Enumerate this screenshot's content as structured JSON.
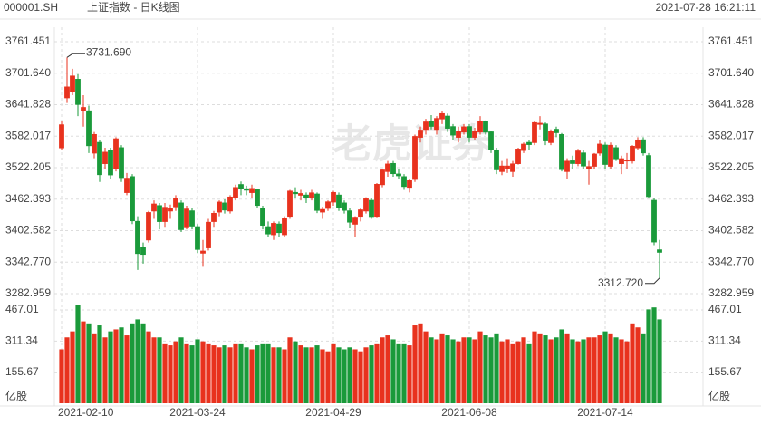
{
  "chart_data": {
    "type": "candlestick",
    "symbol": "000001.SH",
    "title": "上证指数 - 日K线图",
    "timestamp": "2021-07-28 16:21:11",
    "watermark": "老虎证券",
    "up_color": "#e8321e",
    "down_color": "#1a9a3a",
    "categories": [
      "2021-02-10",
      null,
      null,
      null,
      null,
      null,
      null,
      null,
      null,
      null,
      null,
      null,
      null,
      null,
      null,
      null,
      null,
      null,
      null,
      null,
      null,
      null,
      null,
      null,
      null,
      "2021-03-24",
      null,
      null,
      null,
      null,
      null,
      null,
      null,
      null,
      null,
      null,
      null,
      null,
      null,
      null,
      null,
      null,
      null,
      null,
      null,
      null,
      null,
      null,
      null,
      null,
      "2021-04-29",
      null,
      null,
      null,
      null,
      null,
      null,
      null,
      null,
      null,
      null,
      null,
      null,
      null,
      null,
      null,
      null,
      null,
      null,
      null,
      null,
      null,
      null,
      null,
      null,
      "2021-06-08",
      null,
      null,
      null,
      null,
      null,
      null,
      null,
      null,
      null,
      null,
      null,
      null,
      null,
      null,
      null,
      null,
      null,
      null,
      null,
      null,
      null,
      null,
      null,
      null,
      "2021-07-14",
      null,
      null,
      null,
      null,
      null,
      null,
      null,
      null,
      null,
      null
    ],
    "open": [
      3560,
      3655,
      3666,
      3690,
      3630,
      3630,
      3550,
      3570,
      3530,
      3555,
      3520,
      3560,
      3475,
      3505,
      3420,
      3370,
      3385,
      3440,
      3450,
      3420,
      3440,
      3448,
      3455,
      3410,
      3440,
      3410,
      3360,
      3370,
      3420,
      3438,
      3455,
      3440,
      3466,
      3490,
      3482,
      3475,
      3480,
      3445,
      3410,
      3395,
      3415,
      3395,
      3430,
      3475,
      3470,
      3470,
      3465,
      3472,
      3438,
      3445,
      3457,
      3470,
      3455,
      3440,
      3415,
      3430,
      3440,
      3460,
      3430,
      3490,
      3515,
      3530,
      3510,
      3505,
      3485,
      3500,
      3580,
      3595,
      3610,
      3595,
      3615,
      3620,
      3600,
      3580,
      3590,
      3600,
      3580,
      3590,
      3610,
      3590,
      3555,
      3515,
      3520,
      3515,
      3530,
      3555,
      3570,
      3570,
      3605,
      3605,
      3570,
      3595,
      3585,
      3515,
      3535,
      3530,
      3550,
      3520,
      3525,
      3550,
      3565,
      3525,
      3560,
      3530,
      3535,
      3535,
      3560,
      3575,
      3545,
      3460,
      3366
    ],
    "high": [
      3611,
      3731.69,
      3710,
      3700,
      3660,
      3640,
      3590,
      3575,
      3560,
      3560,
      3580,
      3565,
      3512,
      3510,
      3430,
      3380,
      3440,
      3460,
      3455,
      3455,
      3452,
      3470,
      3460,
      3450,
      3445,
      3415,
      3385,
      3425,
      3440,
      3460,
      3462,
      3470,
      3490,
      3496,
      3488,
      3490,
      3482,
      3450,
      3420,
      3420,
      3420,
      3430,
      3480,
      3485,
      3480,
      3475,
      3480,
      3475,
      3448,
      3460,
      3478,
      3475,
      3460,
      3445,
      3430,
      3445,
      3466,
      3465,
      3493,
      3520,
      3535,
      3535,
      3520,
      3510,
      3500,
      3585,
      3600,
      3615,
      3622,
      3620,
      3630,
      3625,
      3605,
      3600,
      3605,
      3605,
      3598,
      3620,
      3612,
      3592,
      3560,
      3535,
      3540,
      3535,
      3560,
      3570,
      3575,
      3610,
      3620,
      3608,
      3595,
      3600,
      3588,
      3540,
      3545,
      3558,
      3555,
      3535,
      3550,
      3575,
      3570,
      3570,
      3565,
      3545,
      3550,
      3565,
      3580,
      3580,
      3550,
      3465,
      3385
    ],
    "low": [
      3555,
      3645,
      3660,
      3620,
      3600,
      3550,
      3540,
      3495,
      3520,
      3500,
      3515,
      3495,
      3470,
      3415,
      3328,
      3340,
      3380,
      3425,
      3405,
      3410,
      3425,
      3440,
      3400,
      3405,
      3405,
      3360,
      3334,
      3365,
      3410,
      3430,
      3435,
      3435,
      3460,
      3470,
      3470,
      3465,
      3445,
      3405,
      3390,
      3385,
      3390,
      3390,
      3425,
      3465,
      3460,
      3455,
      3460,
      3436,
      3425,
      3440,
      3450,
      3440,
      3435,
      3408,
      3390,
      3420,
      3435,
      3425,
      3428,
      3485,
      3505,
      3505,
      3500,
      3480,
      3475,
      3495,
      3570,
      3585,
      3595,
      3585,
      3605,
      3590,
      3575,
      3570,
      3585,
      3570,
      3575,
      3585,
      3585,
      3550,
      3510,
      3508,
      3512,
      3505,
      3528,
      3550,
      3555,
      3565,
      3595,
      3565,
      3565,
      3580,
      3515,
      3500,
      3520,
      3525,
      3520,
      3490,
      3520,
      3545,
      3520,
      3520,
      3535,
      3510,
      3520,
      3530,
      3555,
      3545,
      3465,
      3375,
      3312.72
    ],
    "close": [
      3603.49,
      3675.36,
      3696.17,
      3642.44,
      3636.36,
      3564.08,
      3585.05,
      3509.08,
      3551.4,
      3508.59,
      3576.9,
      3503.49,
      3501.99,
      3421.41,
      3359.29,
      3357.74,
      3436.83,
      3453.08,
      3419.95,
      3446.73,
      3445.55,
      3463.07,
      3404.66,
      3443.44,
      3411.51,
      3367.06,
      3363.59,
      3418.33,
      3435.3,
      3456.68,
      3441.91,
      3466.33,
      3484.39,
      3482.48,
      3479.63,
      3482.55,
      3450.68,
      3412.95,
      3396.47,
      3416.25,
      3398.99,
      3426.62,
      3477.55,
      3472.94,
      3472.93,
      3465.11,
      3474.17,
      3441.17,
      3442.61,
      3457.07,
      3474.9,
      3446.86,
      3441.28,
      3418.87,
      3427.99,
      3441.85,
      3462.75,
      3429.54,
      3490.38,
      3517.62,
      3529.01,
      3510.96,
      3506.94,
      3486.56,
      3497.28,
      3581.34,
      3593.36,
      3608.85,
      3600.78,
      3615.48,
      3624.71,
      3597.14,
      3584.22,
      3591.84,
      3599.54,
      3580.11,
      3591.4,
      3610.86,
      3589.75,
      3556.56,
      3518.33,
      3525.1,
      3525.1,
      3529.18,
      3557.41,
      3566.65,
      3566.22,
      3607.56,
      3606.37,
      3573.18,
      3591.2,
      3588.78,
      3518.76,
      3534.32,
      3530.26,
      3553.72,
      3525.5,
      3524.09,
      3547.84,
      3566.79,
      3528.5,
      3564.59,
      3539.3,
      3539.12,
      3536.79,
      3562.7,
      3574.73,
      3550.4,
      3467.44,
      3381.18,
      3361.64
    ],
    "volume": [
      270,
      330,
      360,
      490,
      410,
      400,
      350,
      390,
      330,
      360,
      370,
      380,
      340,
      400,
      420,
      400,
      360,
      330,
      330,
      300,
      290,
      310,
      330,
      300,
      290,
      320,
      310,
      300,
      290,
      280,
      290,
      280,
      300,
      300,
      280,
      270,
      290,
      300,
      300,
      280,
      280,
      270,
      330,
      310,
      290,
      280,
      280,
      290,
      270,
      260,
      300,
      280,
      270,
      280,
      270,
      260,
      280,
      290,
      300,
      330,
      340,
      320,
      300,
      300,
      290,
      390,
      400,
      360,
      330,
      320,
      350,
      340,
      320,
      310,
      330,
      330,
      320,
      360,
      340,
      330,
      350,
      310,
      320,
      300,
      310,
      330,
      300,
      360,
      350,
      340,
      320,
      330,
      370,
      350,
      320,
      310,
      320,
      330,
      330,
      340,
      360,
      350,
      330,
      320,
      310,
      400,
      380,
      350,
      470,
      480,
      420
    ],
    "ylim": [
      3282.959,
      3761.451
    ],
    "yticks": [
      3761.451,
      {
        "value": 3701.64,
        "label": "3701.640"
      },
      3641.828,
      3582.017,
      3522.205,
      3462.393,
      3402.582,
      {
        "value": 3342.77,
        "label": "3342.770"
      },
      3282.959
    ],
    "volume_ylim": [
      0,
      499
    ],
    "volume_yticks": [
      467.01,
      311.34,
      155.67
    ],
    "volume_unit": "亿股",
    "max_label": {
      "value": 3731.69,
      "label": "3731.690"
    },
    "min_label": {
      "value": 3312.72,
      "label": "3312.720"
    },
    "grid": true
  }
}
